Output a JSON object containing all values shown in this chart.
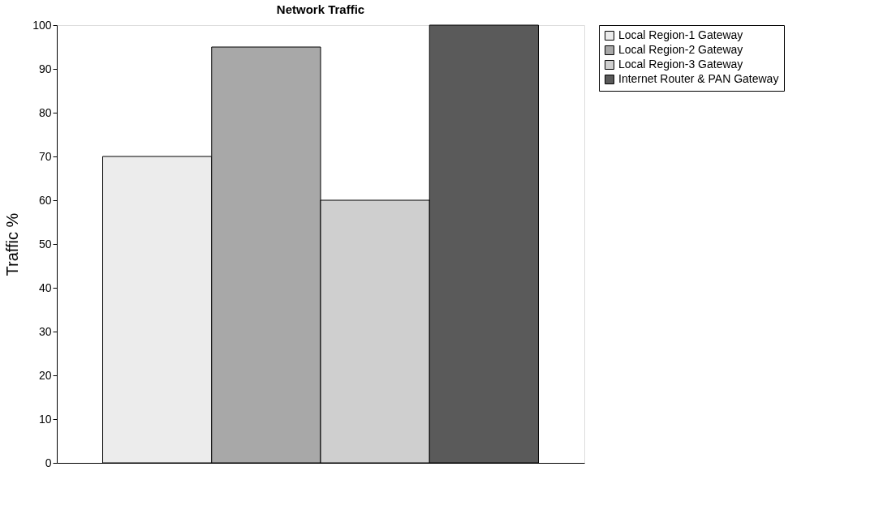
{
  "chart_data": {
    "type": "bar",
    "title": "Network Traffic",
    "ylabel": "Traffic %",
    "categories": [
      null
    ],
    "series": [
      {
        "name": "Local Region-1 Gateway",
        "color": "#ececec",
        "values": [
          70
        ]
      },
      {
        "name": "Local Region-2 Gateway",
        "color": "#a8a8a8",
        "values": [
          95
        ]
      },
      {
        "name": "Local Region-3 Gateway",
        "color": "#cfcfcf",
        "values": [
          60
        ]
      },
      {
        "name": "Internet Router & PAN Gateway",
        "color": "#5a5a5a",
        "values": [
          100
        ]
      }
    ],
    "ylim": [
      0,
      100
    ],
    "yticks": [
      0,
      10,
      20,
      30,
      40,
      50,
      60,
      70,
      80,
      90,
      100
    ],
    "grid": false,
    "legend": "right"
  }
}
